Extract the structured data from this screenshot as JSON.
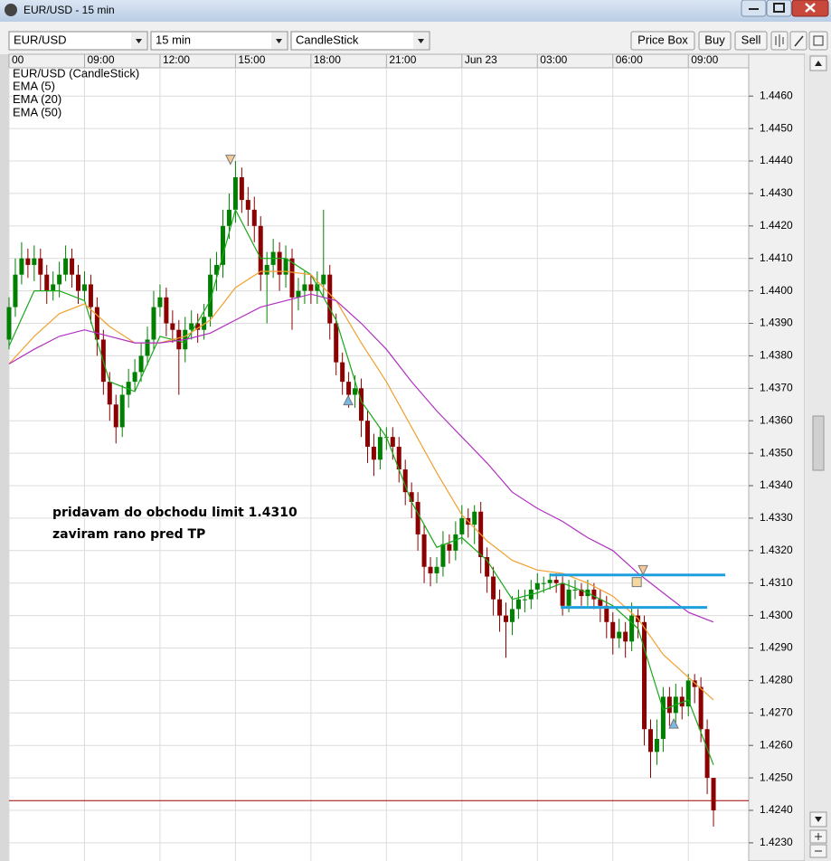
{
  "window": {
    "title": "EUR/USD - 15 min",
    "symbol": "EUR/USD",
    "timeframe": "15 min",
    "chart_style": "CandleStick",
    "buttons": [
      "Price Box",
      "Buy",
      "Sell"
    ]
  },
  "chart_data": {
    "type": "candlestick",
    "candles": {
      "name": "EUR/USD (CandleStick)",
      "color": "#1aa81a",
      "up_color": "#008000",
      "down_color": "#8b0000",
      "x": [
        6,
        6.25,
        6.5,
        6.75,
        7,
        7.25,
        7.5,
        7.75,
        8,
        8.25,
        8.5,
        8.75,
        9,
        9.25,
        9.5,
        9.75,
        10,
        10.25,
        10.5,
        10.75,
        11,
        11.25,
        11.5,
        11.75,
        12,
        12.25,
        12.5,
        12.75,
        13,
        13.25,
        13.5,
        13.75,
        14,
        14.25,
        14.5,
        14.75,
        15,
        15.25,
        15.5,
        15.75,
        16,
        16.25,
        16.5,
        16.75,
        17,
        17.25,
        17.5,
        17.75,
        18,
        18.25,
        18.5,
        18.75,
        19,
        19.25,
        19.5,
        19.75,
        20,
        20.25,
        20.5,
        20.75,
        21,
        21.25,
        21.5,
        21.75,
        22,
        22.25,
        22.5,
        22.75,
        23,
        23.25,
        23.5,
        23.75,
        24,
        24.25,
        24.5,
        24.75,
        25,
        25.25,
        25.5,
        25.75,
        26,
        26.25,
        26.5,
        26.75,
        27,
        27.25,
        27.5,
        27.75,
        28,
        28.25,
        28.5,
        28.75,
        29,
        29.25,
        29.5,
        29.75,
        30,
        30.25,
        30.5,
        30.75,
        31,
        31.25,
        31.5,
        31.75,
        32,
        32.25,
        32.5,
        32.75,
        33,
        33.25,
        33.5,
        33.75,
        34
      ],
      "open": [
        1.4385,
        1.4395,
        1.4405,
        1.441,
        1.4408,
        1.441,
        1.4405,
        1.44,
        1.4402,
        1.4405,
        1.441,
        1.4405,
        1.44,
        1.4402,
        1.4395,
        1.4385,
        1.4372,
        1.4365,
        1.4358,
        1.4368,
        1.4372,
        1.4375,
        1.438,
        1.4385,
        1.4395,
        1.4398,
        1.439,
        1.4388,
        1.4382,
        1.4388,
        1.439,
        1.4388,
        1.4392,
        1.4405,
        1.4408,
        1.442,
        1.4425,
        1.4435,
        1.4428,
        1.4425,
        1.442,
        1.4405,
        1.4408,
        1.4412,
        1.4405,
        1.441,
        1.4398,
        1.44,
        1.4402,
        1.44,
        1.4402,
        1.4405,
        1.439,
        1.4378,
        1.4372,
        1.4368,
        1.437,
        1.436,
        1.4352,
        1.4348,
        1.4355,
        1.4355,
        1.4352,
        1.4345,
        1.4338,
        1.4335,
        1.4325,
        1.4315,
        1.4313,
        1.4315,
        1.4322,
        1.432,
        1.4325,
        1.433,
        1.4328,
        1.4332,
        1.4318,
        1.4312,
        1.4305,
        1.43,
        1.4298,
        1.4302,
        1.4305,
        1.4305,
        1.4308,
        1.431,
        1.431,
        1.4311,
        1.431,
        1.4303,
        1.4308,
        1.4308,
        1.4306,
        1.4308,
        1.4305,
        1.4303,
        1.4298,
        1.4293,
        1.4295,
        1.4292,
        1.43,
        1.4298,
        1.4265,
        1.4258,
        1.4262,
        1.4275,
        1.427,
        1.4275,
        1.4272,
        1.428,
        1.4278,
        1.4265,
        1.425
      ],
      "high": [
        1.4398,
        1.441,
        1.4415,
        1.4413,
        1.4414,
        1.4413,
        1.4408,
        1.4406,
        1.4409,
        1.4414,
        1.4413,
        1.4408,
        1.4406,
        1.4405,
        1.4398,
        1.4388,
        1.4375,
        1.4368,
        1.4371,
        1.4376,
        1.4379,
        1.4384,
        1.4389,
        1.44,
        1.4402,
        1.4401,
        1.4394,
        1.4391,
        1.4392,
        1.4394,
        1.4393,
        1.4396,
        1.441,
        1.4412,
        1.4425,
        1.443,
        1.444,
        1.4438,
        1.4432,
        1.4429,
        1.4423,
        1.4412,
        1.4416,
        1.4415,
        1.4414,
        1.4413,
        1.4404,
        1.4406,
        1.4405,
        1.4406,
        1.4425,
        1.4408,
        1.4393,
        1.4381,
        1.4375,
        1.4374,
        1.4373,
        1.4363,
        1.4356,
        1.4358,
        1.4358,
        1.4358,
        1.4355,
        1.4348,
        1.4341,
        1.4338,
        1.4328,
        1.4318,
        1.4318,
        1.4326,
        1.4325,
        1.4329,
        1.4334,
        1.4333,
        1.4334,
        1.4335,
        1.4321,
        1.4315,
        1.4308,
        1.4304,
        1.4306,
        1.4308,
        1.4308,
        1.4311,
        1.4313,
        1.4312,
        1.4313,
        1.4313,
        1.4312,
        1.4311,
        1.4311,
        1.431,
        1.4311,
        1.431,
        1.4308,
        1.4306,
        1.4301,
        1.4299,
        1.4298,
        1.4304,
        1.4302,
        1.43,
        1.4268,
        1.4268,
        1.4278,
        1.4278,
        1.4279,
        1.4278,
        1.4282,
        1.4282,
        1.4281,
        1.4268,
        1.425
      ],
      "low": [
        1.4382,
        1.4392,
        1.4402,
        1.4404,
        1.4403,
        1.44,
        1.4396,
        1.4397,
        1.4398,
        1.4403,
        1.4401,
        1.4396,
        1.4397,
        1.439,
        1.438,
        1.4368,
        1.436,
        1.4353,
        1.4355,
        1.4364,
        1.4369,
        1.4372,
        1.4377,
        1.4382,
        1.4392,
        1.4386,
        1.4384,
        1.4368,
        1.4378,
        1.4385,
        1.4384,
        1.4385,
        1.4389,
        1.44,
        1.4404,
        1.4416,
        1.4421,
        1.4424,
        1.442,
        1.4415,
        1.44,
        1.439,
        1.4404,
        1.44,
        1.4401,
        1.4388,
        1.4394,
        1.4396,
        1.4396,
        1.4396,
        1.4398,
        1.4385,
        1.4374,
        1.4368,
        1.4364,
        1.4364,
        1.4355,
        1.4347,
        1.4343,
        1.4345,
        1.4351,
        1.4348,
        1.4341,
        1.4334,
        1.433,
        1.432,
        1.431,
        1.4309,
        1.431,
        1.4312,
        1.4316,
        1.4317,
        1.4322,
        1.4324,
        1.4322,
        1.4313,
        1.4307,
        1.43,
        1.4295,
        1.4287,
        1.4294,
        1.4299,
        1.4301,
        1.4302,
        1.4305,
        1.4307,
        1.4308,
        1.4307,
        1.43,
        1.4301,
        1.4305,
        1.4303,
        1.4303,
        1.4302,
        1.4298,
        1.4293,
        1.4288,
        1.429,
        1.4287,
        1.4289,
        1.4293,
        1.426,
        1.425,
        1.4254,
        1.4258,
        1.4266,
        1.4267,
        1.4268,
        1.4269,
        1.4273,
        1.4261,
        1.4245,
        1.4235
      ],
      "close": [
        1.4395,
        1.4405,
        1.441,
        1.4408,
        1.441,
        1.4405,
        1.44,
        1.4402,
        1.4405,
        1.441,
        1.4405,
        1.44,
        1.4402,
        1.4395,
        1.4385,
        1.4372,
        1.4365,
        1.4358,
        1.4368,
        1.4372,
        1.4375,
        1.438,
        1.4385,
        1.4395,
        1.4398,
        1.439,
        1.4388,
        1.4382,
        1.4388,
        1.439,
        1.4388,
        1.4392,
        1.4405,
        1.4408,
        1.442,
        1.4425,
        1.4435,
        1.4428,
        1.4425,
        1.442,
        1.4405,
        1.4408,
        1.4412,
        1.4405,
        1.441,
        1.4398,
        1.44,
        1.4402,
        1.44,
        1.4402,
        1.4405,
        1.439,
        1.4378,
        1.4372,
        1.4368,
        1.437,
        1.436,
        1.4352,
        1.4348,
        1.4355,
        1.4355,
        1.4352,
        1.4345,
        1.4338,
        1.4335,
        1.4325,
        1.4315,
        1.4313,
        1.4315,
        1.4322,
        1.432,
        1.4325,
        1.433,
        1.4328,
        1.4332,
        1.4318,
        1.4312,
        1.4305,
        1.43,
        1.4298,
        1.4302,
        1.4305,
        1.4305,
        1.4308,
        1.431,
        1.431,
        1.4311,
        1.431,
        1.4303,
        1.4308,
        1.4308,
        1.4306,
        1.4308,
        1.4305,
        1.4303,
        1.4298,
        1.4293,
        1.4295,
        1.4292,
        1.43,
        1.4298,
        1.4265,
        1.4258,
        1.4262,
        1.4275,
        1.427,
        1.4275,
        1.4272,
        1.428,
        1.4278,
        1.4265,
        1.425,
        1.424
      ]
    },
    "series": [
      {
        "name": "EMA (5)",
        "color": "#1aa81a",
        "x": [
          6,
          7,
          8,
          9,
          10,
          11,
          12,
          13,
          14,
          15,
          16,
          17,
          18,
          19,
          20,
          21,
          22,
          23,
          24,
          25,
          26,
          27,
          28,
          29,
          30,
          31,
          32,
          33,
          34
        ],
        "values": [
          1.4383,
          1.44,
          1.44,
          1.4397,
          1.4372,
          1.4369,
          1.4386,
          1.4384,
          1.4397,
          1.4425,
          1.441,
          1.441,
          1.4405,
          1.4391,
          1.4366,
          1.4355,
          1.4335,
          1.4321,
          1.4324,
          1.4317,
          1.4305,
          1.4307,
          1.431,
          1.4307,
          1.4303,
          1.4296,
          1.4271,
          1.4274,
          1.4254
        ]
      },
      {
        "name": "EMA (20)",
        "color": "#f0a030",
        "x": [
          6,
          7,
          8,
          9,
          10,
          11,
          12,
          13,
          14,
          15,
          16,
          17,
          18,
          19,
          20,
          21,
          22,
          23,
          24,
          25,
          26,
          27,
          28,
          29,
          30,
          31,
          32,
          33,
          34
        ],
        "values": [
          1.43775,
          1.4386,
          1.4393,
          1.4396,
          1.4389,
          1.4384,
          1.4384,
          1.4386,
          1.4391,
          1.4401,
          1.4406,
          1.4406,
          1.4405,
          1.4397,
          1.4384,
          1.4372,
          1.4358,
          1.4344,
          1.4331,
          1.4323,
          1.4317,
          1.4314,
          1.4313,
          1.431,
          1.4306,
          1.4299,
          1.4288,
          1.4281,
          1.4274
        ]
      },
      {
        "name": "EMA (50)",
        "color": "#b030c0",
        "x": [
          6,
          7,
          8,
          9,
          10,
          11,
          12,
          13,
          14,
          15,
          16,
          17,
          18,
          19,
          20,
          21,
          22,
          23,
          24,
          25,
          26,
          27,
          28,
          29,
          30,
          31,
          32,
          33,
          34
        ],
        "values": [
          1.43775,
          1.4382,
          1.4386,
          1.4388,
          1.4386,
          1.4384,
          1.4384,
          1.4385,
          1.4387,
          1.4391,
          1.4395,
          1.4397,
          1.4399,
          1.4397,
          1.439,
          1.4382,
          1.4372,
          1.4363,
          1.4355,
          1.4347,
          1.4338,
          1.4333,
          1.4329,
          1.4324,
          1.432,
          1.4313,
          1.4307,
          1.4301,
          1.4298
        ]
      }
    ],
    "xlim": [
      6,
      35.4
    ],
    "ylim": [
      1.42244,
      1.44687
    ],
    "xticks": [
      {
        "value": 6,
        "label": "00"
      },
      {
        "value": 9,
        "label": "09:00"
      },
      {
        "value": 12,
        "label": "12:00"
      },
      {
        "value": 15,
        "label": "15:00"
      },
      {
        "value": 18,
        "label": "18:00"
      },
      {
        "value": 21,
        "label": "21:00"
      },
      {
        "value": 24,
        "label": "Jun 23"
      },
      {
        "value": 27,
        "label": "03:00"
      },
      {
        "value": 30,
        "label": "06:00"
      },
      {
        "value": 33,
        "label": "09:00"
      }
    ],
    "yticks": [
      {
        "value": 1.423,
        "label": "1.4230"
      },
      {
        "value": 1.424,
        "label": "1.4240"
      },
      {
        "value": 1.425,
        "label": "1.4250"
      },
      {
        "value": 1.426,
        "label": "1.4260"
      },
      {
        "value": 1.427,
        "label": "1.4270"
      },
      {
        "value": 1.428,
        "label": "1.4280"
      },
      {
        "value": 1.429,
        "label": "1.4290"
      },
      {
        "value": 1.43,
        "label": "1.4300"
      },
      {
        "value": 1.431,
        "label": "1.4310"
      },
      {
        "value": 1.432,
        "label": "1.4320"
      },
      {
        "value": 1.433,
        "label": "1.4330"
      },
      {
        "value": 1.434,
        "label": "1.4340"
      },
      {
        "value": 1.435,
        "label": "1.4350"
      },
      {
        "value": 1.436,
        "label": "1.4360"
      },
      {
        "value": 1.437,
        "label": "1.4370"
      },
      {
        "value": 1.438,
        "label": "1.4380"
      },
      {
        "value": 1.439,
        "label": "1.4390"
      },
      {
        "value": 1.44,
        "label": "1.4400"
      },
      {
        "value": 1.441,
        "label": "1.4410"
      },
      {
        "value": 1.442,
        "label": "1.4420"
      },
      {
        "value": 1.443,
        "label": "1.4430"
      },
      {
        "value": 1.444,
        "label": "1.4440"
      },
      {
        "value": 1.445,
        "label": "1.4450"
      },
      {
        "value": 1.446,
        "label": "1.4460"
      }
    ],
    "grid": true,
    "hlines": [
      {
        "value": 1.4243,
        "color": "#a00000"
      },
      {
        "value": 1.43125,
        "x": [
          27.5,
          34.47
        ],
        "color": "#1ea0dc"
      },
      {
        "value": 1.43025,
        "x": [
          27.93,
          33.75
        ],
        "color": "#1ea0dc"
      }
    ],
    "markers": [
      {
        "x": 14.8,
        "y": 1.44404,
        "shape": "down",
        "color": "#f5c89a"
      },
      {
        "x": 19.48,
        "y": 1.43663,
        "shape": "up",
        "color": "#7ab8e8"
      },
      {
        "x": 30.95,
        "y": 1.43103,
        "shape": "square",
        "color": "#f5d8a0"
      },
      {
        "x": 31.2,
        "y": 1.4314,
        "shape": "down",
        "color": "#f5c89a"
      },
      {
        "x": 32.42,
        "y": 1.42667,
        "shape": "up",
        "color": "#7ab8e8"
      }
    ],
    "annotations": [
      "pridavam do obchodu limit 1.4310",
      "zaviram rano pred TP"
    ]
  }
}
